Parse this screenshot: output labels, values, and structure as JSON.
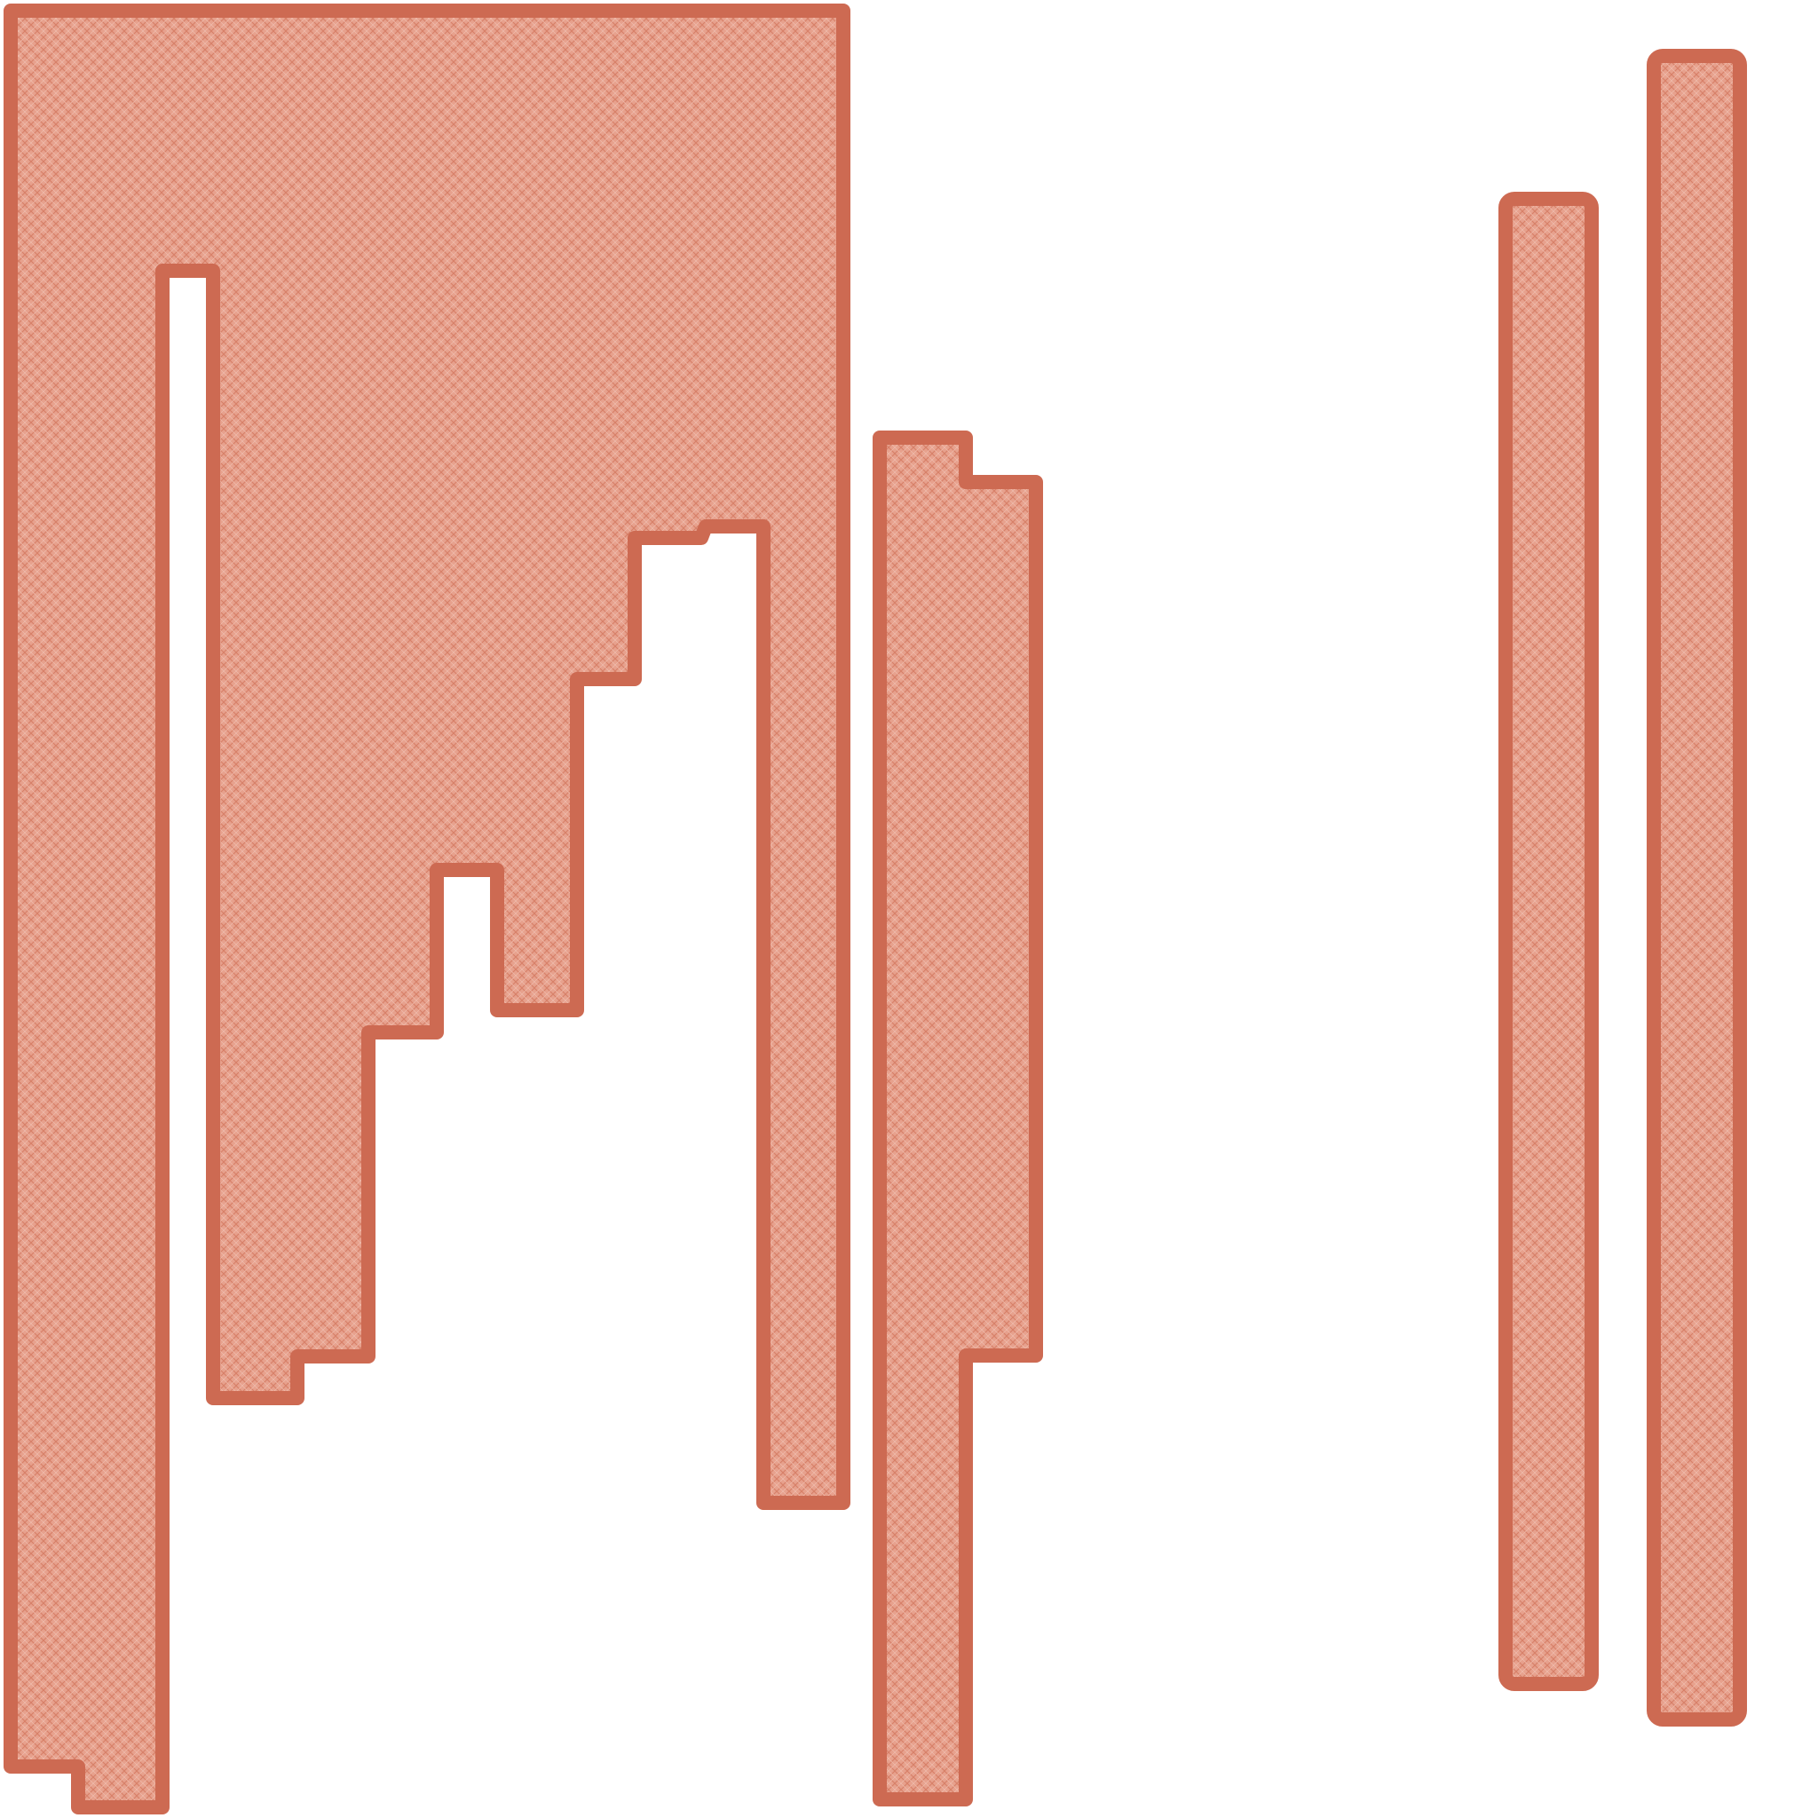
{
  "artwork": {
    "description_text": "",
    "colors": {
      "background": "#ffffff",
      "stroke": "#cd6a52",
      "fill": "#e7a18d",
      "pattern_line": "#d78068"
    },
    "shapes": [
      {
        "id": "large-stepped-block"
      },
      {
        "id": "middle-tall-column"
      },
      {
        "id": "right-bar-1"
      },
      {
        "id": "right-bar-2"
      }
    ]
  }
}
